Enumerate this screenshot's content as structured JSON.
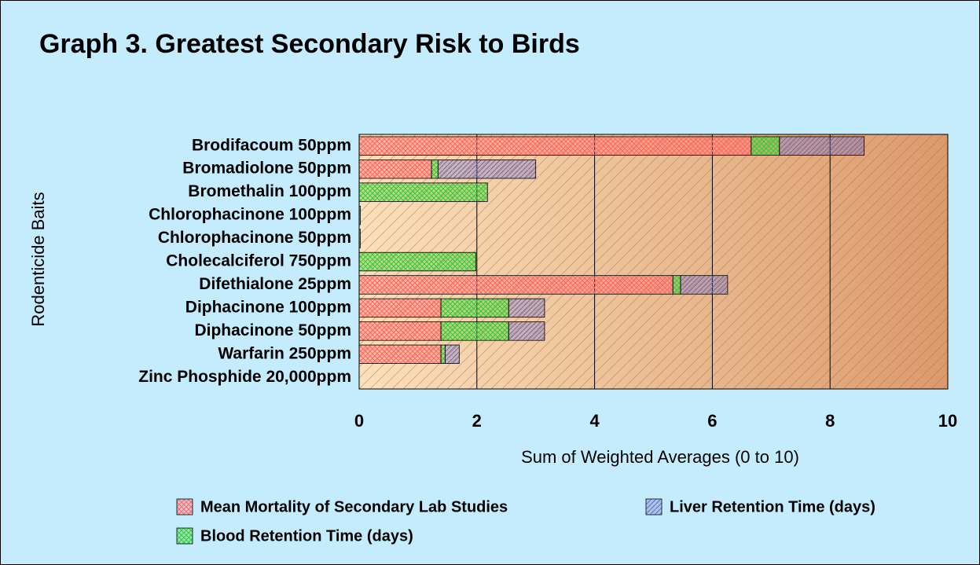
{
  "chart_data": {
    "type": "stacked_barh",
    "title": "Graph 3. Greatest Secondary Risk to Birds",
    "xlabel": "Sum of Weighted Averages (0 to 10)",
    "ylabel": "Rodenticide Baits",
    "categories": [
      "Brodifacoum 50ppm",
      "Bromadiolone 50ppm",
      "Bromethalin 100ppm",
      "Chlorophacinone 100ppm",
      "Chlorophacinone 50ppm",
      "Cholecalciferol 750ppm",
      "Difethialone 25ppm",
      "Diphacinone 100ppm",
      "Diphacinone 50ppm",
      "Warfarin 250ppm",
      "Zinc Phosphide 20,000ppm"
    ],
    "series": [
      {
        "name": "Mean Mortality of Secondary Lab Studies",
        "color": "#ff6666",
        "values": [
          6.66,
          1.23,
          0,
          0,
          0,
          0,
          5.33,
          1.39,
          1.39,
          1.39,
          0
        ]
      },
      {
        "name": "Blood Retention Time (days)",
        "color": "#33cc33",
        "values": [
          0.48,
          0.11,
          2.18,
          0.02,
          0.02,
          1.98,
          0.13,
          1.15,
          1.15,
          0.07,
          0
        ]
      },
      {
        "name": "Liver Retention Time (days)",
        "color": "#6666cc",
        "values": [
          1.44,
          1.66,
          0,
          0,
          0,
          0,
          0.8,
          0.61,
          0.61,
          0.24,
          0
        ]
      }
    ],
    "xlim": [
      0,
      10
    ],
    "xticks": [
      0,
      2,
      4,
      6,
      8,
      10
    ],
    "grid": true
  }
}
